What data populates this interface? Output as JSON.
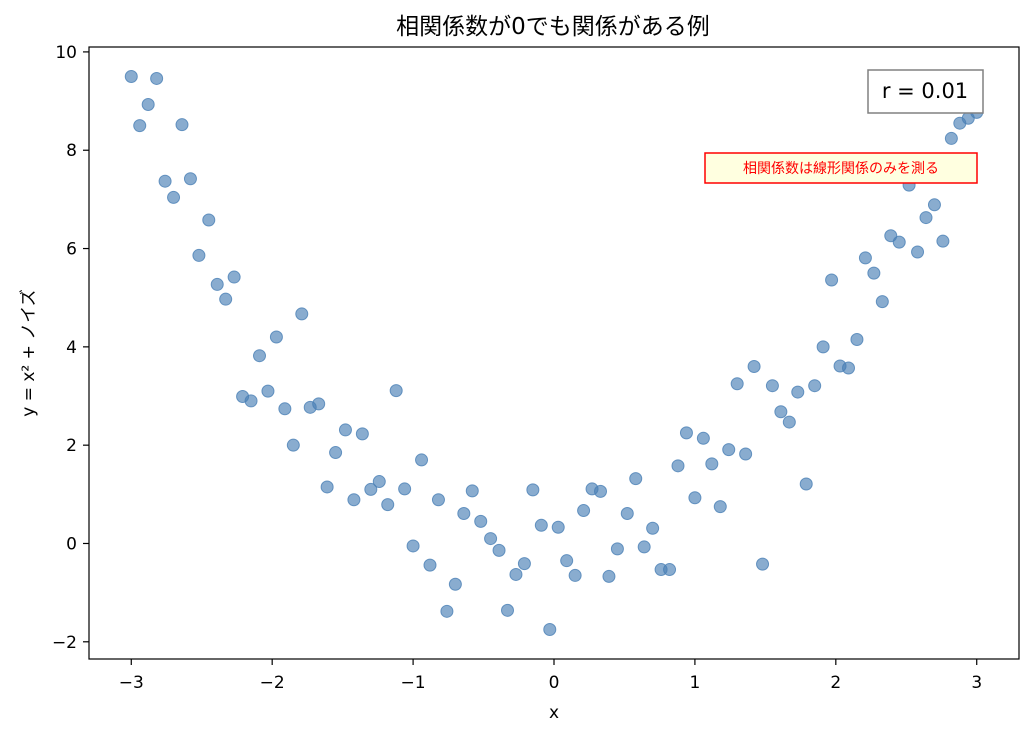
{
  "chart_data": {
    "type": "scatter",
    "title": "相関係数が0でも関係がある例",
    "xlabel": "x",
    "ylabel": "y = x² + ノイズ",
    "xlim": [
      -3.3,
      3.3
    ],
    "ylim": [
      -2.35,
      10.1
    ],
    "xticks": [
      -3,
      -2,
      -1,
      0,
      1,
      2,
      3
    ],
    "xtick_labels": [
      "−3",
      "−2",
      "−1",
      "0",
      "1",
      "2",
      "3"
    ],
    "yticks": [
      -2,
      0,
      2,
      4,
      6,
      8,
      10
    ],
    "ytick_labels": [
      "−2",
      "0",
      "2",
      "4",
      "6",
      "8",
      "10"
    ],
    "grid": false,
    "point_color": "#4a7fb5",
    "annotations": {
      "correlation": "r = 0.01",
      "note": "相関係数は線形関係のみを測る",
      "note_color": "#ff0000",
      "note_background": "#ffffe0"
    },
    "points": [
      [
        -3.0,
        9.5
      ],
      [
        -2.94,
        8.5
      ],
      [
        -2.88,
        8.93
      ],
      [
        -2.82,
        9.46
      ],
      [
        -2.76,
        7.37
      ],
      [
        -2.7,
        7.04
      ],
      [
        -2.64,
        8.52
      ],
      [
        -2.58,
        7.42
      ],
      [
        -2.52,
        5.86
      ],
      [
        -2.45,
        6.58
      ],
      [
        -2.39,
        5.27
      ],
      [
        -2.33,
        4.97
      ],
      [
        -2.27,
        5.42
      ],
      [
        -2.21,
        2.99
      ],
      [
        -2.15,
        2.9
      ],
      [
        -2.09,
        3.82
      ],
      [
        -2.03,
        3.1
      ],
      [
        -1.97,
        4.2
      ],
      [
        -1.91,
        2.74
      ],
      [
        -1.85,
        2.0
      ],
      [
        -1.79,
        4.67
      ],
      [
        -1.73,
        2.77
      ],
      [
        -1.67,
        2.84
      ],
      [
        -1.61,
        1.15
      ],
      [
        -1.55,
        1.85
      ],
      [
        -1.48,
        2.31
      ],
      [
        -1.42,
        0.89
      ],
      [
        -1.36,
        2.23
      ],
      [
        -1.3,
        1.1
      ],
      [
        -1.24,
        1.26
      ],
      [
        -1.18,
        0.79
      ],
      [
        -1.12,
        3.11
      ],
      [
        -1.06,
        1.11
      ],
      [
        -1.0,
        -0.05
      ],
      [
        -0.94,
        1.7
      ],
      [
        -0.88,
        -0.44
      ],
      [
        -0.82,
        0.89
      ],
      [
        -0.76,
        -1.38
      ],
      [
        -0.7,
        -0.83
      ],
      [
        -0.64,
        0.61
      ],
      [
        -0.58,
        1.07
      ],
      [
        -0.52,
        0.45
      ],
      [
        -0.45,
        0.1
      ],
      [
        -0.39,
        -0.14
      ],
      [
        -0.33,
        -1.36
      ],
      [
        -0.27,
        -0.63
      ],
      [
        -0.21,
        -0.41
      ],
      [
        -0.15,
        1.09
      ],
      [
        -0.09,
        0.37
      ],
      [
        -0.03,
        -1.75
      ],
      [
        0.03,
        0.33
      ],
      [
        0.09,
        -0.35
      ],
      [
        0.15,
        -0.65
      ],
      [
        0.21,
        0.67
      ],
      [
        0.27,
        1.11
      ],
      [
        0.33,
        1.06
      ],
      [
        0.39,
        -0.67
      ],
      [
        0.45,
        -0.11
      ],
      [
        0.52,
        0.61
      ],
      [
        0.58,
        1.32
      ],
      [
        0.64,
        -0.07
      ],
      [
        0.7,
        0.31
      ],
      [
        0.76,
        -0.53
      ],
      [
        0.82,
        -0.53
      ],
      [
        0.88,
        1.58
      ],
      [
        0.94,
        2.25
      ],
      [
        1.0,
        0.93
      ],
      [
        1.06,
        2.14
      ],
      [
        1.12,
        1.62
      ],
      [
        1.18,
        0.75
      ],
      [
        1.24,
        1.91
      ],
      [
        1.3,
        3.25
      ],
      [
        1.36,
        1.82
      ],
      [
        1.42,
        3.6
      ],
      [
        1.48,
        -0.42
      ],
      [
        1.55,
        3.21
      ],
      [
        1.61,
        2.68
      ],
      [
        1.67,
        2.47
      ],
      [
        1.73,
        3.08
      ],
      [
        1.79,
        1.21
      ],
      [
        1.85,
        3.21
      ],
      [
        1.91,
        4.0
      ],
      [
        1.97,
        5.36
      ],
      [
        2.03,
        3.61
      ],
      [
        2.09,
        3.57
      ],
      [
        2.15,
        4.15
      ],
      [
        2.21,
        5.81
      ],
      [
        2.27,
        5.5
      ],
      [
        2.33,
        4.92
      ],
      [
        2.39,
        6.26
      ],
      [
        2.45,
        6.13
      ],
      [
        2.52,
        7.29
      ],
      [
        2.58,
        5.93
      ],
      [
        2.64,
        6.63
      ],
      [
        2.7,
        6.89
      ],
      [
        2.76,
        6.15
      ],
      [
        2.82,
        8.24
      ],
      [
        2.88,
        8.55
      ],
      [
        2.94,
        8.65
      ],
      [
        3.0,
        8.77
      ]
    ]
  }
}
